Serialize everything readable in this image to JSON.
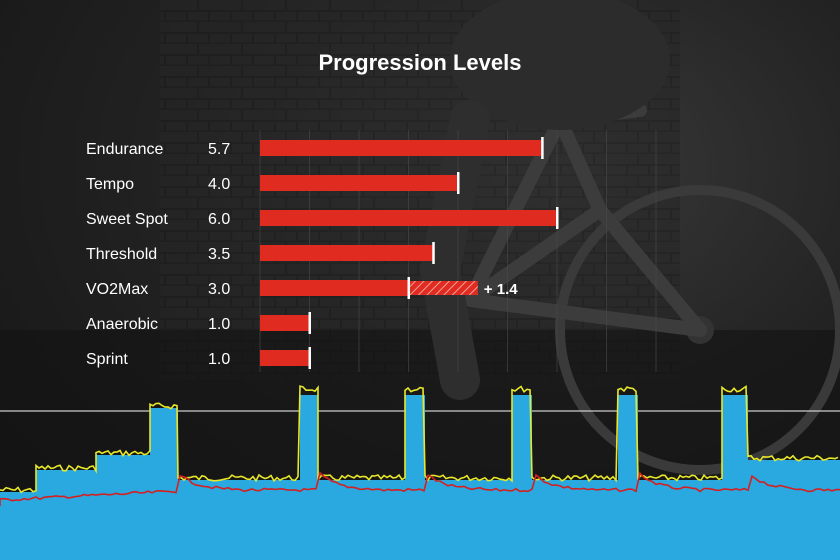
{
  "chart_data": {
    "type": "bar",
    "title": "Progression Levels",
    "categories": [
      "Endurance",
      "Tempo",
      "Sweet Spot",
      "Threshold",
      "VO2Max",
      "Anaerobic",
      "Sprint"
    ],
    "values": [
      5.7,
      4.0,
      6.0,
      3.5,
      3.0,
      1.0,
      1.0
    ],
    "value_labels": [
      "5.7",
      "4.0",
      "6.0",
      "3.5",
      "3.0",
      "1.0",
      "1.0"
    ],
    "increment": {
      "category": "VO2Max",
      "value": 1.4,
      "label": "+ 1.4"
    },
    "xlim": [
      0,
      6.0
    ],
    "grid": true,
    "colors": {
      "bar": "#e02b20",
      "increment": "#e02b20",
      "cap": "#ffffff"
    }
  },
  "workout_profile": {
    "colors": {
      "fill": "#2aa8e0",
      "power_line": "#e8e82a",
      "hr_line": "#d42020",
      "ftp_line": "#cccccc"
    }
  }
}
